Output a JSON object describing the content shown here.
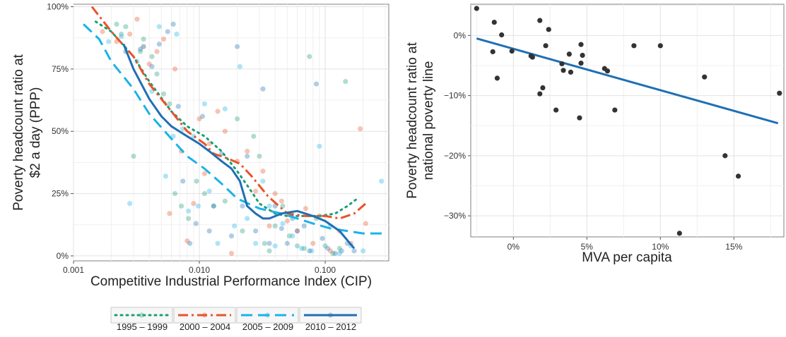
{
  "chart_data": [
    {
      "type": "scatter",
      "title": "",
      "xlabel": "Competitive Industrial Performance Index (CIP)",
      "ylabel": [
        "Poverty headcount ratio at",
        "$2 a day (PPP)"
      ],
      "x_scale": "log10",
      "xlim": [
        0.001,
        0.32
      ],
      "ylim": [
        -0.02,
        1.01
      ],
      "xticks": [
        0.001,
        0.01,
        0.1
      ],
      "xtick_labels": [
        "0.001",
        "0.010",
        "0.100"
      ],
      "yticks": [
        0,
        0.25,
        0.5,
        0.75,
        1.0
      ],
      "ytick_labels": [
        "0%",
        "25%",
        "50%",
        "75%",
        "100%"
      ],
      "grid": true,
      "legend": {
        "position": "bottom",
        "entries": [
          "1995 – 1999",
          "2000 – 2004",
          "2005 – 2009",
          "2010 – 2012"
        ]
      },
      "series": [
        {
          "name": "1995 – 1999",
          "color": "#1a9e77",
          "line_style": "dotted",
          "points": [
            [
              0.0022,
              0.93
            ],
            [
              0.0024,
              0.89
            ],
            [
              0.0026,
              0.92
            ],
            [
              0.003,
              0.4
            ],
            [
              0.0034,
              0.82
            ],
            [
              0.0036,
              0.87
            ],
            [
              0.0042,
              0.8
            ],
            [
              0.0046,
              0.73
            ],
            [
              0.0052,
              0.65
            ],
            [
              0.0058,
              0.61
            ],
            [
              0.0064,
              0.25
            ],
            [
              0.0072,
              0.2
            ],
            [
              0.0082,
              0.15
            ],
            [
              0.0095,
              0.3
            ],
            [
              0.011,
              0.25
            ],
            [
              0.013,
              0.2
            ],
            [
              0.016,
              0.22
            ],
            [
              0.02,
              0.55
            ],
            [
              0.022,
              0.1
            ],
            [
              0.027,
              0.48
            ],
            [
              0.03,
              0.4
            ],
            [
              0.033,
              0.05
            ],
            [
              0.036,
              0.02
            ],
            [
              0.04,
              0.12
            ],
            [
              0.046,
              0.2
            ],
            [
              0.052,
              0.08
            ],
            [
              0.06,
              0.04
            ],
            [
              0.068,
              0.03
            ],
            [
              0.075,
              0.8
            ],
            [
              0.085,
              0.15
            ],
            [
              0.1,
              0.04
            ],
            [
              0.115,
              0.01
            ],
            [
              0.13,
              0.03
            ],
            [
              0.145,
              0.7
            ]
          ],
          "trend": [
            [
              0.0015,
              0.94
            ],
            [
              0.002,
              0.9
            ],
            [
              0.003,
              0.8
            ],
            [
              0.004,
              0.7
            ],
            [
              0.006,
              0.58
            ],
            [
              0.008,
              0.52
            ],
            [
              0.011,
              0.48
            ],
            [
              0.015,
              0.42
            ],
            [
              0.02,
              0.34
            ],
            [
              0.025,
              0.27
            ],
            [
              0.03,
              0.21
            ],
            [
              0.04,
              0.17
            ],
            [
              0.05,
              0.16
            ],
            [
              0.07,
              0.16
            ],
            [
              0.09,
              0.16
            ],
            [
              0.12,
              0.17
            ],
            [
              0.15,
              0.2
            ],
            [
              0.18,
              0.23
            ]
          ]
        },
        {
          "name": "2000 – 2004",
          "color": "#e8542a",
          "line_style": "dashdot",
          "points": [
            [
              0.0017,
              0.9
            ],
            [
              0.0022,
              0.86
            ],
            [
              0.0028,
              0.89
            ],
            [
              0.0032,
              0.95
            ],
            [
              0.0036,
              0.84
            ],
            [
              0.004,
              0.77
            ],
            [
              0.0046,
              0.82
            ],
            [
              0.0052,
              0.87
            ],
            [
              0.0058,
              0.17
            ],
            [
              0.0064,
              0.75
            ],
            [
              0.0072,
              0.42
            ],
            [
              0.008,
              0.06
            ],
            [
              0.009,
              0.21
            ],
            [
              0.01,
              0.55
            ],
            [
              0.011,
              0.33
            ],
            [
              0.012,
              0.45
            ],
            [
              0.014,
              0.58
            ],
            [
              0.016,
              0.5
            ],
            [
              0.018,
              0.01
            ],
            [
              0.02,
              0.38
            ],
            [
              0.024,
              0.42
            ],
            [
              0.028,
              0.26
            ],
            [
              0.032,
              0.34
            ],
            [
              0.036,
              0.12
            ],
            [
              0.04,
              0.25
            ],
            [
              0.045,
              0.22
            ],
            [
              0.05,
              0.14
            ],
            [
              0.06,
              0.1
            ],
            [
              0.07,
              0.19
            ],
            [
              0.08,
              0.05
            ],
            [
              0.09,
              0.16
            ],
            [
              0.11,
              0.02
            ],
            [
              0.13,
              0.1
            ],
            [
              0.16,
              0.05
            ],
            [
              0.19,
              0.51
            ],
            [
              0.21,
              0.13
            ]
          ],
          "trend": [
            [
              0.0014,
              1.0
            ],
            [
              0.002,
              0.9
            ],
            [
              0.003,
              0.8
            ],
            [
              0.004,
              0.69
            ],
            [
              0.006,
              0.58
            ],
            [
              0.008,
              0.5
            ],
            [
              0.011,
              0.45
            ],
            [
              0.013,
              0.41
            ],
            [
              0.017,
              0.39
            ],
            [
              0.021,
              0.37
            ],
            [
              0.026,
              0.32
            ],
            [
              0.035,
              0.24
            ],
            [
              0.05,
              0.17
            ],
            [
              0.07,
              0.16
            ],
            [
              0.1,
              0.16
            ],
            [
              0.13,
              0.15
            ],
            [
              0.17,
              0.17
            ],
            [
              0.21,
              0.21
            ]
          ]
        },
        {
          "name": "2005 – 2009",
          "color": "#1ab3e8",
          "line_style": "dashed",
          "points": [
            [
              0.0019,
              0.86
            ],
            [
              0.0024,
              0.88
            ],
            [
              0.0028,
              0.21
            ],
            [
              0.0032,
              0.78
            ],
            [
              0.0036,
              0.84
            ],
            [
              0.0042,
              0.66
            ],
            [
              0.0048,
              0.92
            ],
            [
              0.0054,
              0.32
            ],
            [
              0.0062,
              0.48
            ],
            [
              0.0066,
              0.89
            ],
            [
              0.0074,
              0.51
            ],
            [
              0.0082,
              0.18
            ],
            [
              0.009,
              0.48
            ],
            [
              0.0098,
              0.2
            ],
            [
              0.011,
              0.61
            ],
            [
              0.012,
              0.26
            ],
            [
              0.014,
              0.05
            ],
            [
              0.016,
              0.59
            ],
            [
              0.019,
              0.12
            ],
            [
              0.021,
              0.76
            ],
            [
              0.024,
              0.15
            ],
            [
              0.028,
              0.05
            ],
            [
              0.032,
              0.3
            ],
            [
              0.036,
              0.2
            ],
            [
              0.04,
              0.04
            ],
            [
              0.046,
              0.13
            ],
            [
              0.055,
              0.08
            ],
            [
              0.065,
              0.03
            ],
            [
              0.078,
              0.02
            ],
            [
              0.09,
              0.44
            ],
            [
              0.11,
              0.12
            ],
            [
              0.13,
              0.01
            ],
            [
              0.16,
              0.04
            ],
            [
              0.2,
              0.02
            ],
            [
              0.28,
              0.3
            ]
          ],
          "trend": [
            [
              0.0012,
              0.93
            ],
            [
              0.0016,
              0.87
            ],
            [
              0.002,
              0.78
            ],
            [
              0.003,
              0.67
            ],
            [
              0.004,
              0.57
            ],
            [
              0.006,
              0.47
            ],
            [
              0.008,
              0.4
            ],
            [
              0.011,
              0.35
            ],
            [
              0.015,
              0.29
            ],
            [
              0.02,
              0.23
            ],
            [
              0.03,
              0.19
            ],
            [
              0.045,
              0.17
            ],
            [
              0.06,
              0.15
            ],
            [
              0.08,
              0.13
            ],
            [
              0.11,
              0.11
            ],
            [
              0.15,
              0.1
            ],
            [
              0.2,
              0.09
            ],
            [
              0.3,
              0.09
            ]
          ]
        },
        {
          "name": "2010 – 2012",
          "color": "#1f6fb4",
          "line_style": "solid",
          "points": [
            [
              0.0026,
              0.82
            ],
            [
              0.0034,
              0.83
            ],
            [
              0.0042,
              0.76
            ],
            [
              0.0048,
              0.85
            ],
            [
              0.0056,
              0.9
            ],
            [
              0.0062,
              0.93
            ],
            [
              0.0068,
              0.6
            ],
            [
              0.0074,
              0.3
            ],
            [
              0.0084,
              0.05
            ],
            [
              0.0094,
              0.13
            ],
            [
              0.0106,
              0.56
            ],
            [
              0.012,
              0.1
            ],
            [
              0.013,
              0.2
            ],
            [
              0.015,
              0.41
            ],
            [
              0.018,
              0.08
            ],
            [
              0.02,
              0.84
            ],
            [
              0.022,
              0.2
            ],
            [
              0.024,
              0.4
            ],
            [
              0.028,
              0.1
            ],
            [
              0.032,
              0.67
            ],
            [
              0.036,
              0.05
            ],
            [
              0.04,
              0.2
            ],
            [
              0.045,
              0.11
            ],
            [
              0.05,
              0.05
            ],
            [
              0.055,
              0.15
            ],
            [
              0.06,
              0.1
            ],
            [
              0.068,
              0.12
            ],
            [
              0.075,
              0.02
            ],
            [
              0.085,
              0.69
            ],
            [
              0.095,
              0.07
            ],
            [
              0.105,
              0.03
            ],
            [
              0.12,
              0.01
            ],
            [
              0.135,
              0.02
            ],
            [
              0.15,
              0.05
            ],
            [
              0.17,
              0.02
            ]
          ],
          "trend": [
            [
              0.0025,
              0.85
            ],
            [
              0.003,
              0.75
            ],
            [
              0.004,
              0.63
            ],
            [
              0.005,
              0.56
            ],
            [
              0.006,
              0.52
            ],
            [
              0.008,
              0.48
            ],
            [
              0.01,
              0.45
            ],
            [
              0.012,
              0.42
            ],
            [
              0.015,
              0.38
            ],
            [
              0.018,
              0.35
            ],
            [
              0.021,
              0.3
            ],
            [
              0.024,
              0.2
            ],
            [
              0.028,
              0.17
            ],
            [
              0.032,
              0.15
            ],
            [
              0.036,
              0.15
            ],
            [
              0.045,
              0.17
            ],
            [
              0.06,
              0.18
            ],
            [
              0.08,
              0.16
            ],
            [
              0.1,
              0.14
            ],
            [
              0.13,
              0.1
            ],
            [
              0.17,
              0.03
            ]
          ]
        }
      ]
    },
    {
      "type": "scatter",
      "title": "",
      "xlabel": "MVA per capita",
      "ylabel": [
        "Poverty headcount ratio at",
        "national poverty line"
      ],
      "xlim": [
        -0.029,
        0.184
      ],
      "ylim": [
        -0.335,
        0.052
      ],
      "xticks": [
        0,
        0.05,
        0.1,
        0.15
      ],
      "xtick_labels": [
        "0%",
        "5%",
        "10%",
        "15%"
      ],
      "yticks": [
        0,
        -0.1,
        -0.2,
        -0.3
      ],
      "ytick_labels": [
        "0%",
        "−10%",
        "−20%",
        "−30%"
      ],
      "grid": true,
      "point_color": "#333333",
      "line_color": "#1f6fb4",
      "points": [
        [
          -0.025,
          0.045
        ],
        [
          -0.013,
          0.022
        ],
        [
          -0.014,
          -0.027
        ],
        [
          -0.011,
          -0.071
        ],
        [
          -0.008,
          0.001
        ],
        [
          -0.001,
          -0.026
        ],
        [
          0.012,
          -0.034
        ],
        [
          0.013,
          -0.036
        ],
        [
          0.018,
          0.025
        ],
        [
          0.018,
          -0.097
        ],
        [
          0.02,
          -0.087
        ],
        [
          0.022,
          -0.017
        ],
        [
          0.024,
          0.01
        ],
        [
          0.029,
          -0.124
        ],
        [
          0.033,
          -0.047
        ],
        [
          0.034,
          -0.058
        ],
        [
          0.038,
          -0.031
        ],
        [
          0.039,
          -0.061
        ],
        [
          0.045,
          -0.137
        ],
        [
          0.046,
          -0.046
        ],
        [
          0.046,
          -0.015
        ],
        [
          0.047,
          -0.033
        ],
        [
          0.062,
          -0.055
        ],
        [
          0.064,
          -0.059
        ],
        [
          0.069,
          -0.124
        ],
        [
          0.082,
          -0.017
        ],
        [
          0.1,
          -0.017
        ],
        [
          0.13,
          -0.069
        ],
        [
          0.113,
          -0.329
        ],
        [
          0.144,
          -0.2
        ],
        [
          0.153,
          -0.234
        ],
        [
          0.181,
          -0.096
        ]
      ],
      "fit_line": [
        [
          -0.025,
          -0.005
        ],
        [
          0.18,
          -0.146
        ]
      ]
    }
  ]
}
